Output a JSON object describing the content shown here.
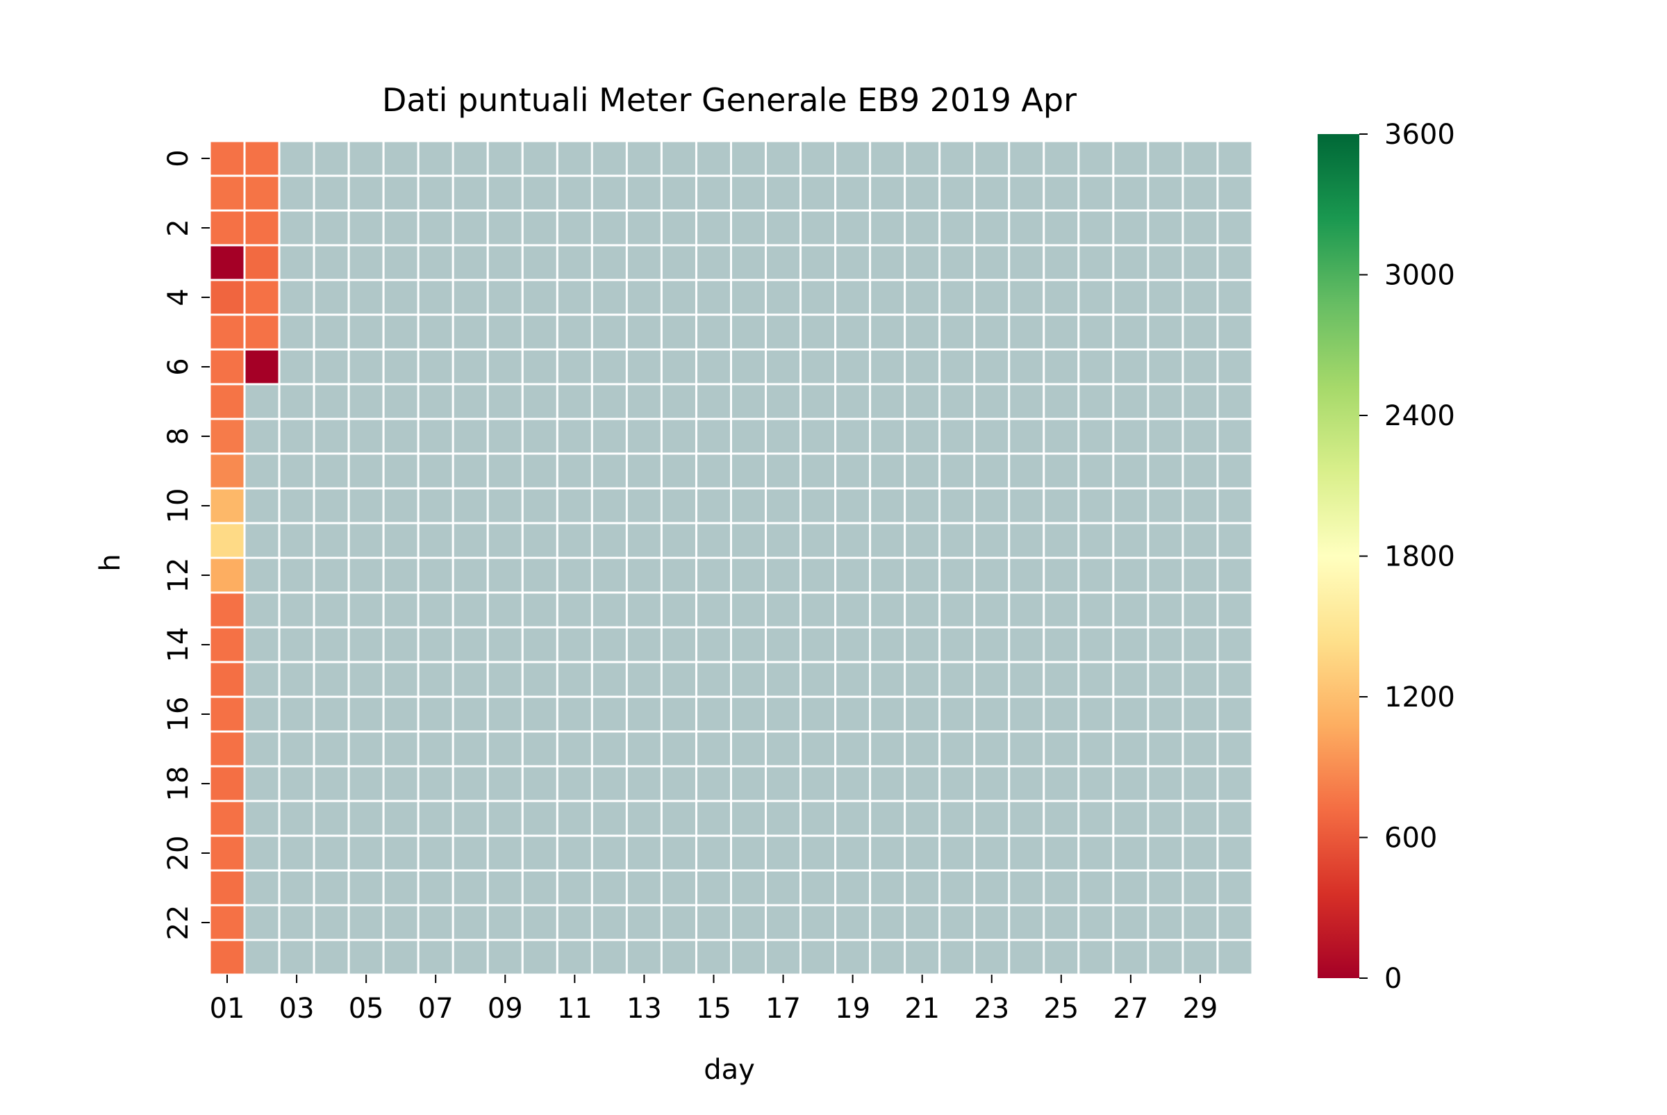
{
  "chart_data": {
    "type": "heatmap",
    "title": "Dati puntuali Meter Generale EB9 2019 Apr",
    "xlabel": "day",
    "ylabel": "h",
    "x_categories": [
      "01",
      "02",
      "03",
      "04",
      "05",
      "06",
      "07",
      "08",
      "09",
      "10",
      "11",
      "12",
      "13",
      "14",
      "15",
      "16",
      "17",
      "18",
      "19",
      "20",
      "21",
      "22",
      "23",
      "24",
      "25",
      "26",
      "27",
      "28",
      "29",
      "30"
    ],
    "y_categories": [
      0,
      1,
      2,
      3,
      4,
      5,
      6,
      7,
      8,
      9,
      10,
      11,
      12,
      13,
      14,
      15,
      16,
      17,
      18,
      19,
      20,
      21,
      22,
      23
    ],
    "x_tick_labels": [
      "01",
      "03",
      "05",
      "07",
      "09",
      "11",
      "13",
      "15",
      "17",
      "19",
      "21",
      "23",
      "25",
      "27",
      "29"
    ],
    "y_tick_labels": [
      "0",
      "2",
      "4",
      "6",
      "8",
      "10",
      "12",
      "14",
      "16",
      "18",
      "20",
      "22"
    ],
    "colormap": "RdYlGn",
    "vmin": 0,
    "vmax": 3600,
    "colorbar_ticks": [
      "0",
      "600",
      "1200",
      "1800",
      "2400",
      "3000",
      "3600"
    ],
    "missing_color": "#b0c7c8",
    "grid_color": "#ffffff",
    "values_by_day": {
      "01": [
        750,
        760,
        740,
        0,
        670,
        750,
        750,
        760,
        800,
        880,
        1150,
        1400,
        1080,
        740,
        740,
        730,
        740,
        740,
        730,
        740,
        740,
        730,
        740,
        730
      ],
      "02": [
        750,
        760,
        740,
        700,
        740,
        750,
        0,
        null,
        null,
        null,
        null,
        null,
        null,
        null,
        null,
        null,
        null,
        null,
        null,
        null,
        null,
        null,
        null,
        null
      ]
    }
  }
}
